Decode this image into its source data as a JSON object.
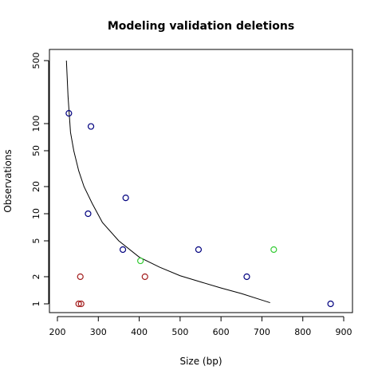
{
  "chart_data": {
    "type": "scatter",
    "title": "Modeling validation deletions",
    "xlabel": "Size (bp)",
    "ylabel": "Observations",
    "xlim": [
      200,
      900
    ],
    "ylim": [
      1,
      500
    ],
    "y_scale": "log",
    "grid": false,
    "legend": "none",
    "x_ticks": [
      200,
      300,
      400,
      500,
      600,
      700,
      800,
      900
    ],
    "y_ticks": [
      1,
      2,
      5,
      10,
      20,
      50,
      100,
      500
    ],
    "x_tick_labels": [
      "200",
      "300",
      "400",
      "500",
      "600",
      "700",
      "800",
      "900"
    ],
    "y_tick_labels": [
      "1",
      "2",
      "5",
      "10",
      "20",
      "50",
      "100",
      "500"
    ],
    "point_groups": [
      {
        "color": "#00007f",
        "points": [
          {
            "x": 228,
            "y": 130
          },
          {
            "x": 282,
            "y": 93
          },
          {
            "x": 367,
            "y": 15
          },
          {
            "x": 275,
            "y": 10
          },
          {
            "x": 360,
            "y": 4
          },
          {
            "x": 545,
            "y": 4
          },
          {
            "x": 663,
            "y": 2
          },
          {
            "x": 868,
            "y": 1
          }
        ]
      },
      {
        "color": "#a31d1d",
        "points": [
          {
            "x": 256,
            "y": 2
          },
          {
            "x": 414,
            "y": 2
          },
          {
            "x": 252,
            "y": 1
          },
          {
            "x": 258,
            "y": 1
          }
        ]
      },
      {
        "color": "#33cc33",
        "points": [
          {
            "x": 403,
            "y": 3
          },
          {
            "x": 729,
            "y": 4
          }
        ]
      }
    ],
    "curve": {
      "color": "#000000",
      "points": [
        {
          "x": 222,
          "y": 500
        },
        {
          "x": 226,
          "y": 200
        },
        {
          "x": 232,
          "y": 80
        },
        {
          "x": 240,
          "y": 50
        },
        {
          "x": 252,
          "y": 30
        },
        {
          "x": 265,
          "y": 20
        },
        {
          "x": 285,
          "y": 13
        },
        {
          "x": 310,
          "y": 8
        },
        {
          "x": 350,
          "y": 5
        },
        {
          "x": 400,
          "y": 3.3
        },
        {
          "x": 450,
          "y": 2.55
        },
        {
          "x": 500,
          "y": 2.05
        },
        {
          "x": 550,
          "y": 1.75
        },
        {
          "x": 600,
          "y": 1.5
        },
        {
          "x": 650,
          "y": 1.3
        },
        {
          "x": 700,
          "y": 1.1
        },
        {
          "x": 720,
          "y": 1.03
        }
      ]
    }
  }
}
